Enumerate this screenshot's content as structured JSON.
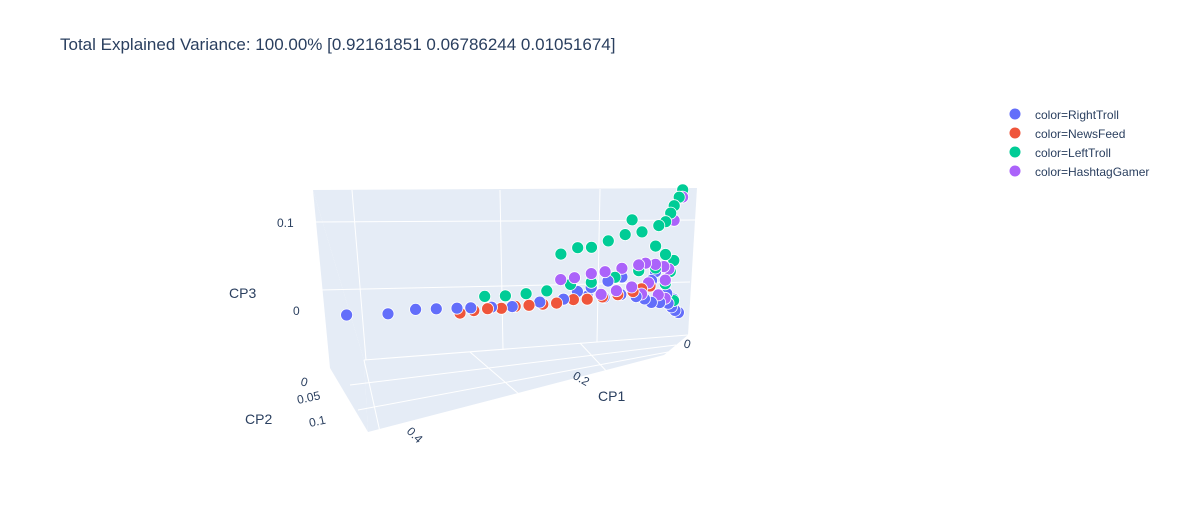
{
  "chart_data": {
    "type": "scatter",
    "subtype": "scatter3d",
    "title": "Total Explained Variance: 100.00% [0.92161851 0.06786244 0.01051674]",
    "axes": {
      "x": {
        "label": "CP1",
        "ticks": [
          "0",
          "0.2",
          "0.4"
        ],
        "range": [
          0,
          0.5
        ]
      },
      "y": {
        "label": "CP2",
        "ticks": [
          "0",
          "0.05",
          "0.1"
        ],
        "range": [
          0,
          0.12
        ]
      },
      "z": {
        "label": "CP3",
        "ticks": [
          "0",
          "0.1"
        ],
        "range": [
          -0.03,
          0.15
        ]
      }
    },
    "grid": true,
    "legend_position": "top-right",
    "series": [
      {
        "name": "color=RightTroll",
        "color": "#636efa",
        "points": [
          [
            0.46,
            0.06,
            0.0
          ],
          [
            0.4,
            0.06,
            0.0
          ],
          [
            0.36,
            0.06,
            0.005
          ],
          [
            0.33,
            0.06,
            0.005
          ],
          [
            0.3,
            0.06,
            0.005
          ],
          [
            0.28,
            0.06,
            0.005
          ],
          [
            0.25,
            0.06,
            0.005
          ],
          [
            0.22,
            0.06,
            0.005
          ],
          [
            0.18,
            0.06,
            0.01
          ],
          [
            0.15,
            0.05,
            0.01
          ],
          [
            0.12,
            0.04,
            0.01
          ],
          [
            0.1,
            0.03,
            0.005
          ],
          [
            0.08,
            0.02,
            0.005
          ],
          [
            0.06,
            0.015,
            0.0
          ],
          [
            0.05,
            0.01,
            -0.005
          ],
          [
            0.04,
            0.01,
            -0.01
          ],
          [
            0.03,
            0.005,
            -0.012
          ],
          [
            0.02,
            0.0,
            -0.015
          ],
          [
            0.015,
            0.0,
            -0.02
          ],
          [
            0.01,
            0.0,
            -0.025
          ],
          [
            0.005,
            0.0,
            -0.028
          ],
          [
            0.03,
            0.02,
            0.035
          ],
          [
            0.05,
            0.03,
            0.04
          ],
          [
            0.07,
            0.04,
            0.035
          ],
          [
            0.09,
            0.04,
            0.03
          ],
          [
            0.11,
            0.05,
            0.025
          ],
          [
            0.13,
            0.05,
            0.02
          ],
          [
            0.04,
            0.01,
            0.02
          ],
          [
            0.02,
            0.005,
            0.0
          ],
          [
            0.01,
            0.005,
            -0.008
          ]
        ]
      },
      {
        "name": "color=NewsFeed",
        "color": "#EF553B",
        "points": [
          [
            0.3,
            0.05,
            -0.005
          ],
          [
            0.28,
            0.05,
            -0.002
          ],
          [
            0.26,
            0.05,
            0.0
          ],
          [
            0.24,
            0.05,
            0.0
          ],
          [
            0.22,
            0.05,
            0.002
          ],
          [
            0.2,
            0.05,
            0.003
          ],
          [
            0.18,
            0.05,
            0.004
          ],
          [
            0.16,
            0.05,
            0.005
          ],
          [
            0.14,
            0.04,
            0.006
          ],
          [
            0.12,
            0.04,
            0.006
          ],
          [
            0.1,
            0.035,
            0.007
          ],
          [
            0.08,
            0.03,
            0.008
          ],
          [
            0.06,
            0.025,
            0.01
          ],
          [
            0.05,
            0.02,
            0.012
          ],
          [
            0.04,
            0.015,
            0.014
          ]
        ]
      },
      {
        "name": "color=LeftTroll",
        "color": "#00cc96",
        "points": [
          [
            0.0,
            0.0,
            0.14
          ],
          [
            0.005,
            0.0,
            0.13
          ],
          [
            0.01,
            0.005,
            0.12
          ],
          [
            0.015,
            0.005,
            0.11
          ],
          [
            0.02,
            0.01,
            0.1
          ],
          [
            0.03,
            0.01,
            0.095
          ],
          [
            0.05,
            0.02,
            0.09
          ],
          [
            0.07,
            0.03,
            0.09
          ],
          [
            0.09,
            0.04,
            0.085
          ],
          [
            0.11,
            0.05,
            0.08
          ],
          [
            0.13,
            0.05,
            0.08
          ],
          [
            0.15,
            0.06,
            0.075
          ],
          [
            0.06,
            0.03,
            0.11
          ],
          [
            0.03,
            0.02,
            0.07
          ],
          [
            0.02,
            0.01,
            0.055
          ],
          [
            0.01,
            0.005,
            0.045
          ],
          [
            0.26,
            0.06,
            0.02
          ],
          [
            0.23,
            0.06,
            0.02
          ],
          [
            0.2,
            0.06,
            0.022
          ],
          [
            0.17,
            0.06,
            0.025
          ],
          [
            0.14,
            0.05,
            0.03
          ],
          [
            0.11,
            0.05,
            0.032
          ],
          [
            0.08,
            0.04,
            0.035
          ],
          [
            0.05,
            0.03,
            0.04
          ],
          [
            0.03,
            0.02,
            0.04
          ],
          [
            0.02,
            0.01,
            0.015
          ],
          [
            0.01,
            0.005,
            -0.01
          ],
          [
            0.015,
            0.005,
            0.03
          ]
        ]
      },
      {
        "name": "color=HashtagGamer",
        "color": "#ab63fa",
        "points": [
          [
            0.0,
            0.0,
            0.13
          ],
          [
            0.01,
            0.005,
            0.1
          ],
          [
            0.15,
            0.06,
            0.04
          ],
          [
            0.13,
            0.06,
            0.042
          ],
          [
            0.11,
            0.05,
            0.044
          ],
          [
            0.09,
            0.05,
            0.046
          ],
          [
            0.07,
            0.04,
            0.047
          ],
          [
            0.05,
            0.03,
            0.048
          ],
          [
            0.04,
            0.03,
            0.05
          ],
          [
            0.03,
            0.02,
            0.045
          ],
          [
            0.02,
            0.015,
            0.04
          ],
          [
            0.015,
            0.01,
            0.035
          ],
          [
            0.02,
            0.01,
            0.02
          ],
          [
            0.04,
            0.02,
            0.02
          ],
          [
            0.06,
            0.03,
            0.018
          ],
          [
            0.08,
            0.035,
            0.015
          ],
          [
            0.1,
            0.04,
            0.012
          ],
          [
            0.05,
            0.02,
            0.005
          ],
          [
            0.03,
            0.01,
            0.0
          ],
          [
            0.02,
            0.01,
            -0.005
          ]
        ]
      }
    ]
  }
}
